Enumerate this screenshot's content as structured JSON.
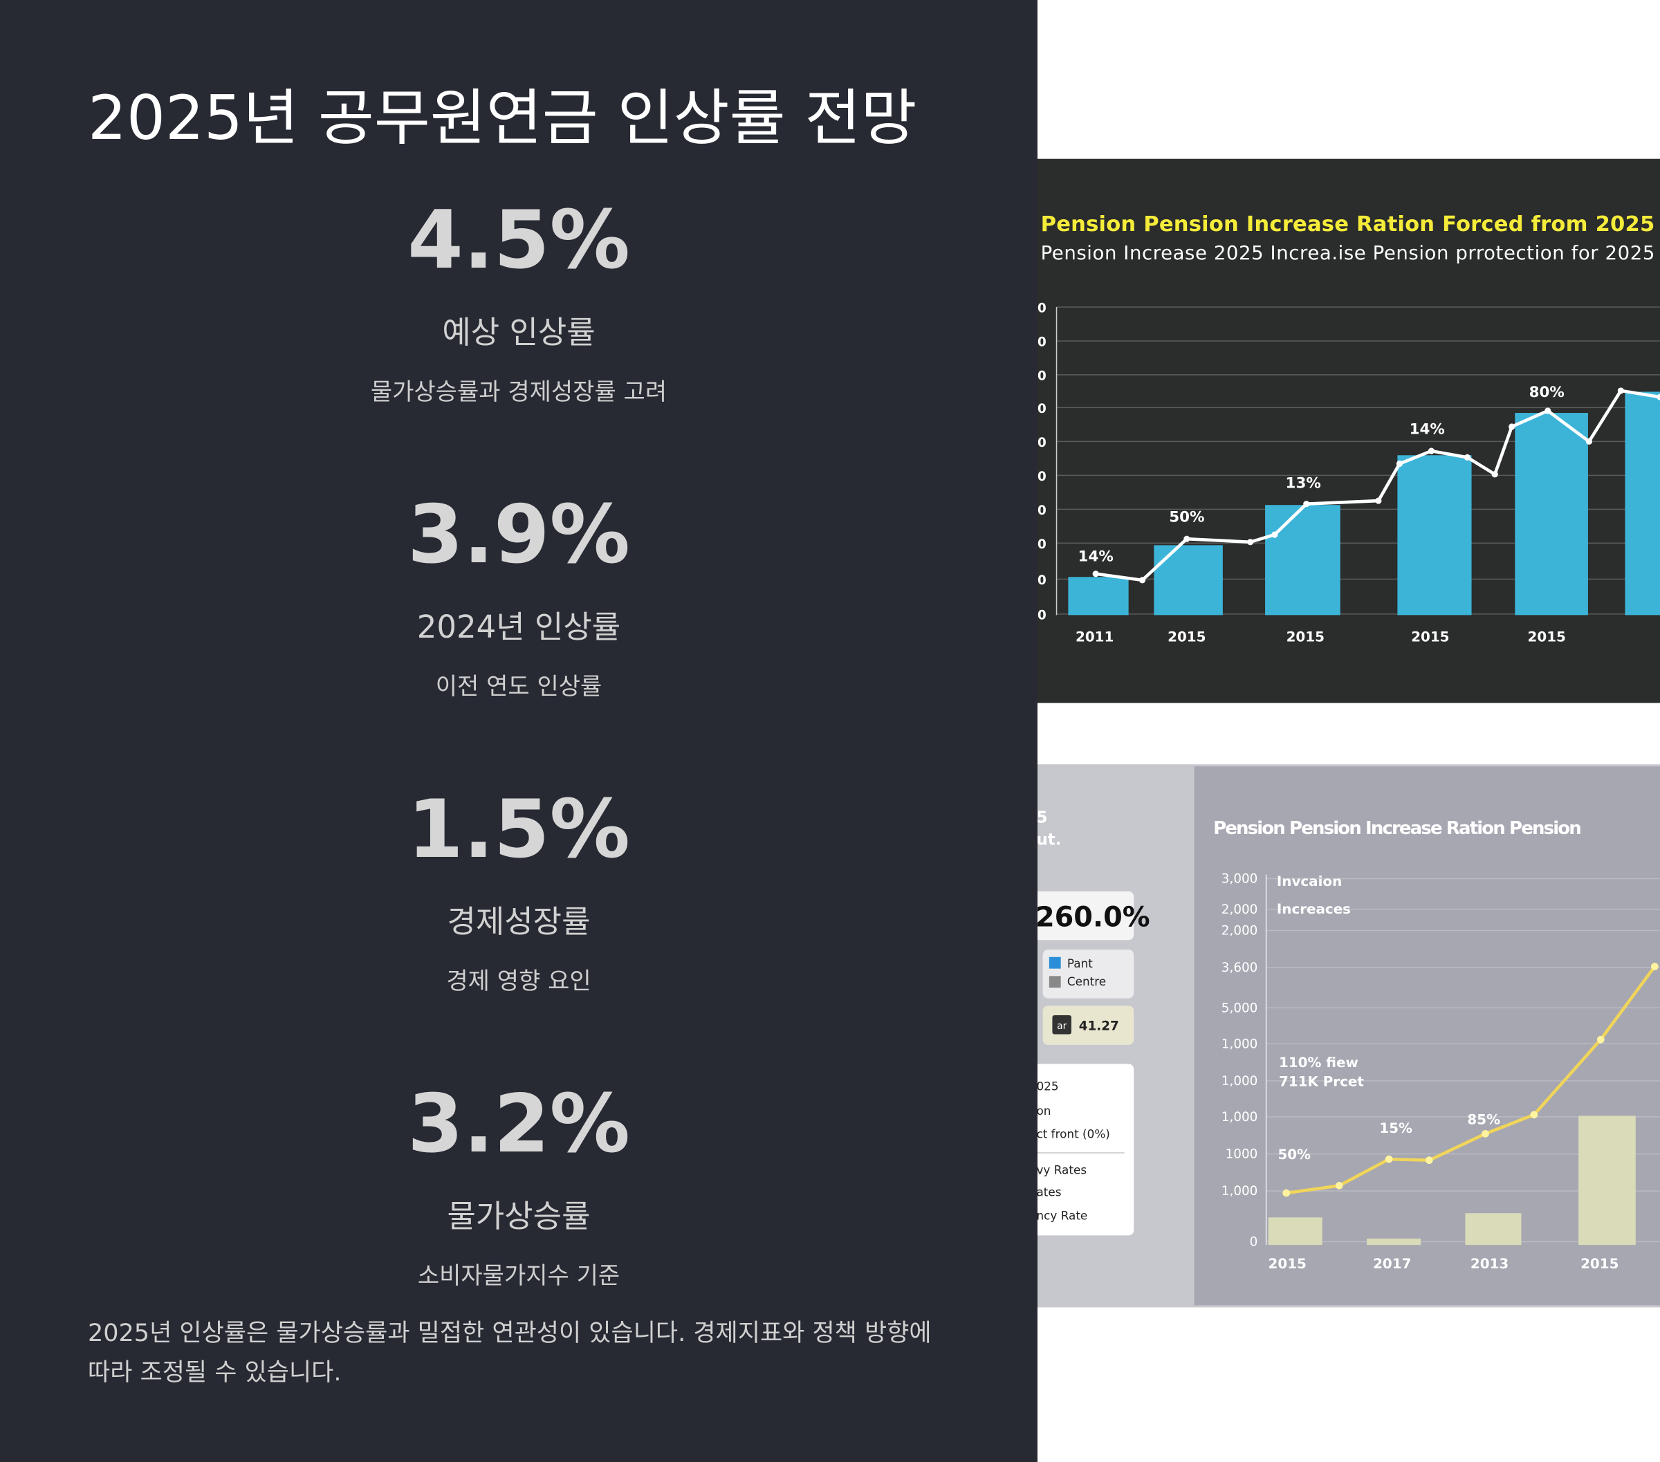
{
  "title": "2025년 공무원연금 인상률 전망",
  "stats": [
    {
      "value": "4.5%",
      "label": "예상 인상률",
      "desc": "물가상승률과 경제성장률 고려"
    },
    {
      "value": "3.9%",
      "label": "2024년 인상률",
      "desc": "이전 연도 인상률"
    },
    {
      "value": "1.5%",
      "label": "경제성장률",
      "desc": "경제 영향 요인"
    },
    {
      "value": "3.2%",
      "label": "물가상승률",
      "desc": "소비자물가지수 기준"
    }
  ],
  "footer": "2025년 인상률은 물가상승률과 밀접한 연관성이 있습니다. 경제지표와 정책 방향에 따라 조정될 수 있습니다.",
  "image": {
    "top_chart": {
      "title": "Pension  Pension Increase Ration Forced from 2025",
      "subtitle": "Pension Increase 2025 Increa.ise Pension prrotection for 2025",
      "axis_labels": [
        "0",
        "0",
        "0",
        "0",
        "0",
        "0",
        "0",
        "0",
        "0",
        "0"
      ],
      "bar_labels": [
        "14%",
        "50%",
        "13%",
        "14%",
        "80%"
      ],
      "x_labels": [
        "2011",
        "2015",
        "2015",
        "2015",
        "2015"
      ]
    },
    "bottom_chart": {
      "side_texts": [
        "5",
        "ut."
      ],
      "big_card": "260.0%",
      "legend": [
        "Pant",
        "Centre"
      ],
      "badge": "ar",
      "badge_value": "41.27",
      "list": [
        "025",
        "on",
        "ct front (0%)",
        "vy Rates",
        "ates",
        "ncy Rate"
      ],
      "title": "Pension Pension Increase Ration Pension",
      "axis_labels": [
        "3,000",
        "2,000",
        "2,000",
        "3,600",
        "5,000",
        "1,000",
        "1,000",
        "1,000",
        "1000",
        "1,000",
        "0"
      ],
      "annotations": [
        "Invcaion",
        "Increaces",
        "110% fiew",
        "711K Prcet",
        "50%",
        "15%",
        "85%"
      ],
      "x_labels": [
        "2015",
        "2017",
        "2013",
        "2015"
      ]
    }
  }
}
